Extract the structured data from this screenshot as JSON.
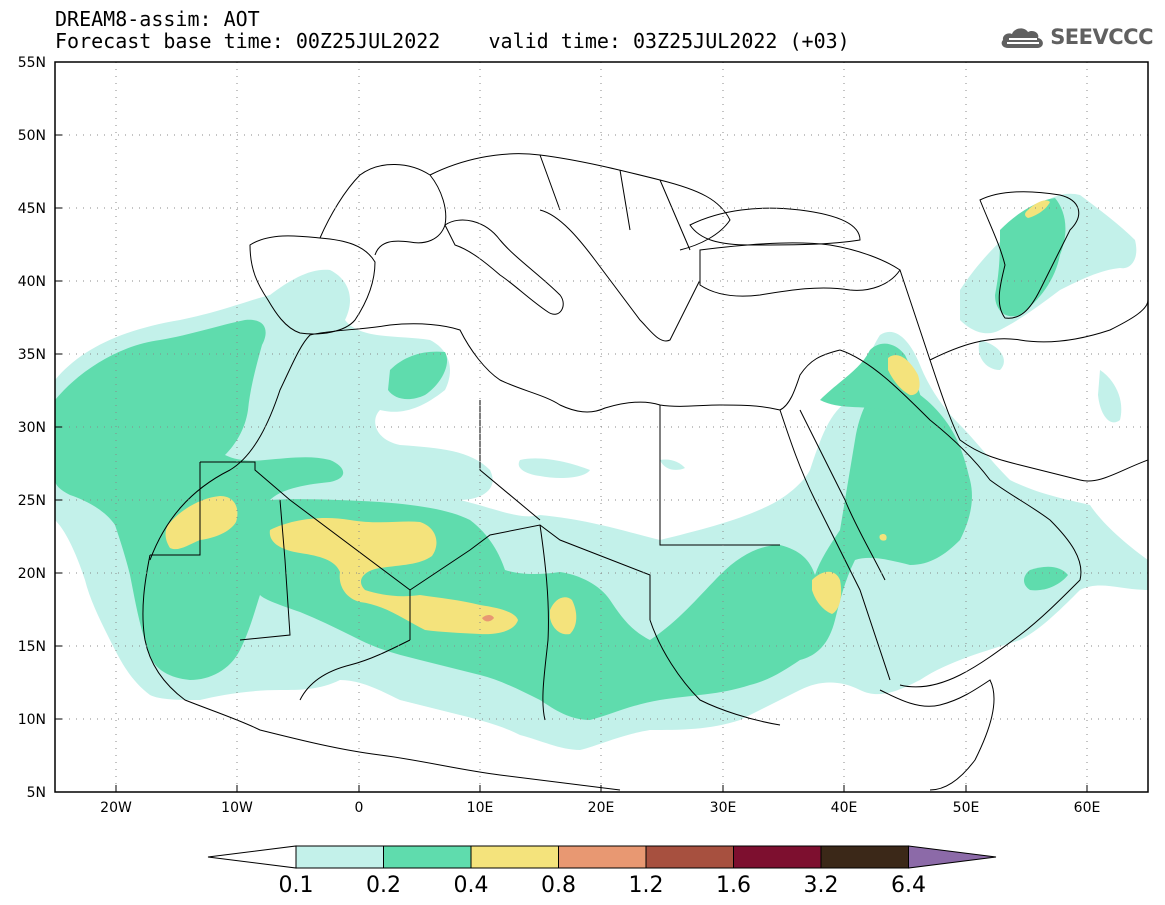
{
  "header": {
    "line1": "DREAM8-assim: AOT",
    "line2_base_label": "Forecast base time: 00Z25JUL2022",
    "line2_valid_label": "valid time: 03Z25JUL2022 (+03)"
  },
  "logo": {
    "text": "SEEVCCC",
    "icon": "cloud-logo-icon"
  },
  "map": {
    "lon_range": [
      -25,
      65
    ],
    "lat_range": [
      5,
      55
    ],
    "lat_ticks": [
      "55N",
      "50N",
      "45N",
      "40N",
      "35N",
      "30N",
      "25N",
      "20N",
      "15N",
      "10N",
      "5N"
    ],
    "lon_ticks": [
      "20W",
      "10W",
      "0",
      "10E",
      "20E",
      "30E",
      "40E",
      "50E",
      "60E"
    ],
    "grid": "dotted"
  },
  "colorbar": {
    "levels": [
      "0.1",
      "0.2",
      "0.4",
      "0.8",
      "1.2",
      "1.6",
      "3.2",
      "6.4"
    ],
    "colors": [
      "#c3f1ea",
      "#5fdcad",
      "#f4e37c",
      "#e89872",
      "#a7503f",
      "#7d0f2f",
      "#3b2818",
      "#8c6aa8"
    ],
    "under_color": "#ffffff",
    "over_color": "#8c6aa8"
  },
  "colors": {
    "c1": "#c3f1ea",
    "c2": "#5fdcad",
    "c3": "#f4e37c",
    "c4": "#e89872",
    "border": "#000000"
  }
}
